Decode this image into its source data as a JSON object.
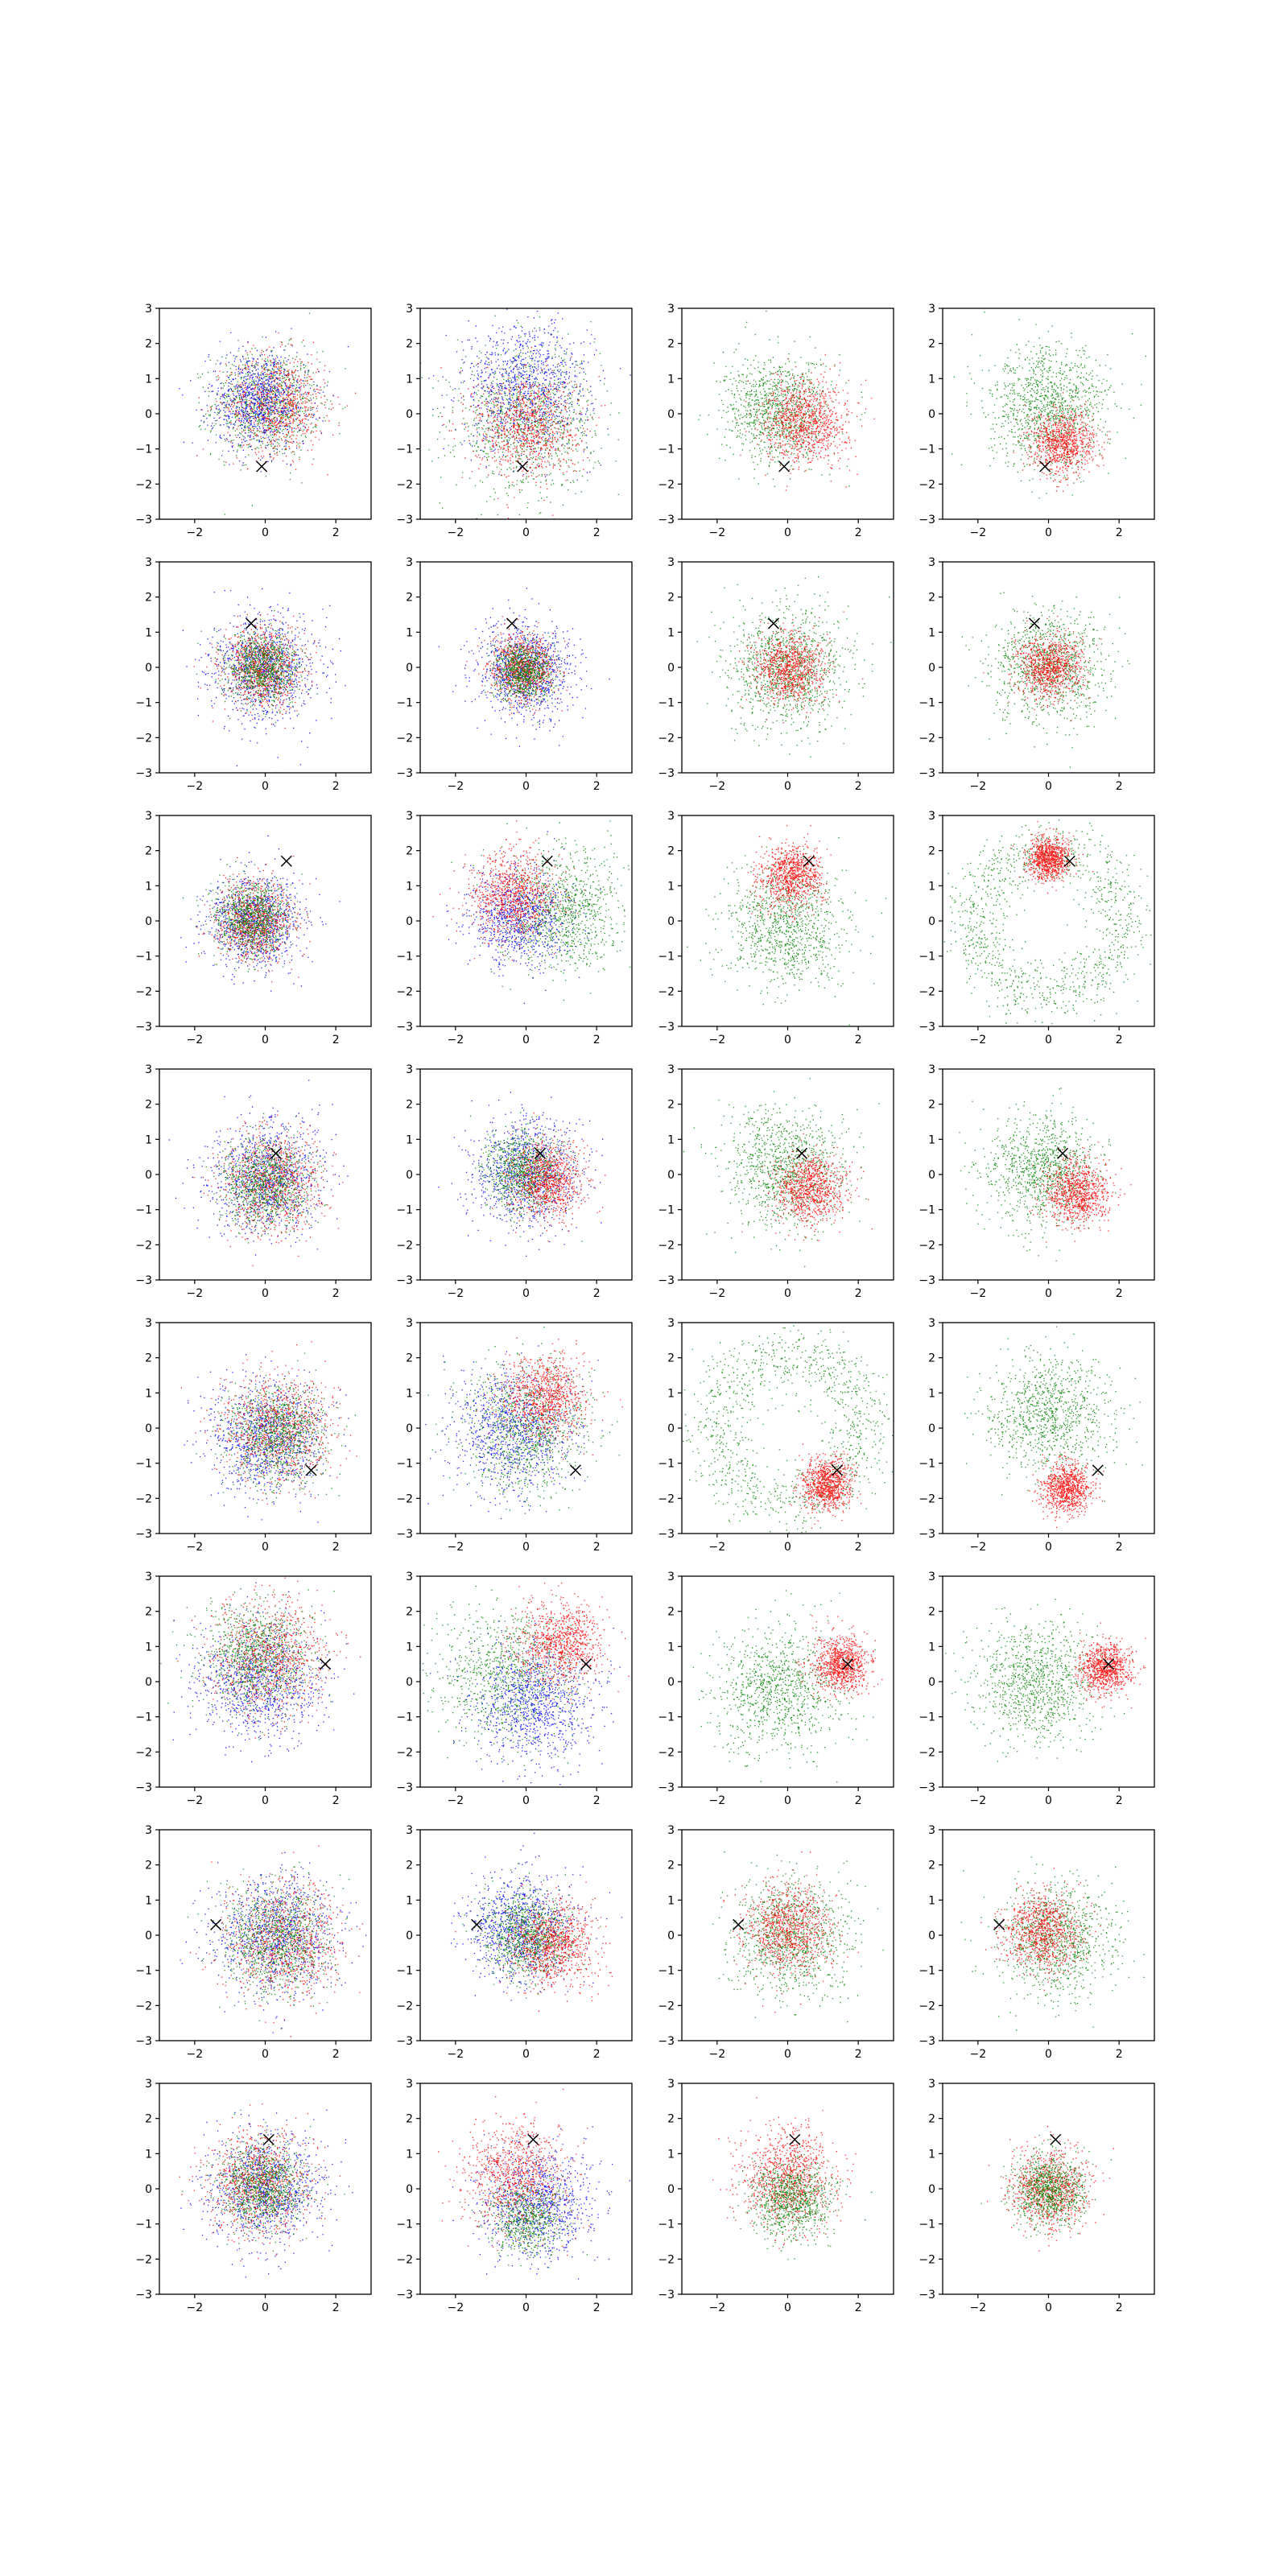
{
  "figure": {
    "rows": 8,
    "cols": 4
  },
  "axes": {
    "xlim": [
      -3,
      3
    ],
    "ylim": [
      -3,
      3
    ],
    "xticks": [
      -2,
      0,
      2
    ],
    "yticks": [
      -3,
      -2,
      -1,
      0,
      1,
      2,
      3
    ],
    "xtick_labels": [
      "−2",
      "0",
      "2"
    ],
    "ytick_labels": [
      "−3",
      "−2",
      "−1",
      "0",
      "1",
      "2",
      "3"
    ],
    "grid": false,
    "legend": "none"
  },
  "colors": {
    "red": "#ff0000",
    "green": "#008000",
    "blue": "#0000ff",
    "marker": "#000000"
  },
  "chart_data": {
    "type": "scatter",
    "description_units": "each panel: gaussian-like point clouds (center x, y, spread sigma, point count) in data units; 'ring' clouds have radius r and width w; marker is the black x position",
    "panels": [
      {
        "row": 0,
        "col": 0,
        "marker": [
          -0.1,
          -1.5
        ],
        "clouds": [
          {
            "color": "green",
            "kind": "blob",
            "cx": 0.0,
            "cy": 0.3,
            "sigma": 0.75,
            "n": 900
          },
          {
            "color": "red",
            "kind": "blob",
            "cx": 0.3,
            "cy": 0.3,
            "sigma": 0.7,
            "n": 900
          },
          {
            "color": "blue",
            "kind": "blob",
            "cx": -0.2,
            "cy": 0.4,
            "sigma": 0.7,
            "n": 900
          }
        ]
      },
      {
        "row": 0,
        "col": 1,
        "marker": [
          -0.1,
          -1.5
        ],
        "clouds": [
          {
            "color": "green",
            "kind": "blob",
            "cx": 0.0,
            "cy": -0.2,
            "sigma": 1.0,
            "n": 1000
          },
          {
            "color": "blue",
            "kind": "blob",
            "cx": 0.0,
            "cy": 0.8,
            "sigma": 0.9,
            "n": 1000
          },
          {
            "color": "red",
            "kind": "blob",
            "cx": 0.0,
            "cy": -0.3,
            "sigma": 0.75,
            "n": 900
          }
        ]
      },
      {
        "row": 0,
        "col": 2,
        "marker": [
          -0.1,
          -1.5
        ],
        "clouds": [
          {
            "color": "green",
            "kind": "blob",
            "cx": -0.3,
            "cy": 0.1,
            "sigma": 0.75,
            "n": 1000
          },
          {
            "color": "red",
            "kind": "blob",
            "cx": 0.5,
            "cy": -0.2,
            "sigma": 0.6,
            "n": 1000
          }
        ]
      },
      {
        "row": 0,
        "col": 3,
        "marker": [
          -0.1,
          -1.5
        ],
        "clouds": [
          {
            "color": "green",
            "kind": "blob",
            "cx": 0.0,
            "cy": 0.2,
            "sigma": 0.85,
            "n": 1100
          },
          {
            "color": "red",
            "kind": "blob",
            "cx": 0.4,
            "cy": -0.8,
            "sigma": 0.45,
            "n": 900
          }
        ]
      },
      {
        "row": 1,
        "col": 0,
        "marker": [
          -0.4,
          1.25
        ],
        "clouds": [
          {
            "color": "blue",
            "kind": "blob",
            "cx": 0.0,
            "cy": 0.0,
            "sigma": 0.75,
            "n": 1000
          },
          {
            "color": "red",
            "kind": "blob",
            "cx": -0.1,
            "cy": 0.0,
            "sigma": 0.55,
            "n": 900
          },
          {
            "color": "green",
            "kind": "blob",
            "cx": -0.1,
            "cy": 0.0,
            "sigma": 0.5,
            "n": 900
          }
        ]
      },
      {
        "row": 1,
        "col": 1,
        "marker": [
          -0.4,
          1.25
        ],
        "clouds": [
          {
            "color": "blue",
            "kind": "blob",
            "cx": 0.0,
            "cy": -0.1,
            "sigma": 0.7,
            "n": 1000
          },
          {
            "color": "red",
            "kind": "blob",
            "cx": -0.1,
            "cy": 0.0,
            "sigma": 0.45,
            "n": 900
          },
          {
            "color": "green",
            "kind": "blob",
            "cx": -0.1,
            "cy": -0.1,
            "sigma": 0.4,
            "n": 800
          }
        ]
      },
      {
        "row": 1,
        "col": 2,
        "marker": [
          -0.4,
          1.25
        ],
        "clouds": [
          {
            "color": "green",
            "kind": "blob",
            "cx": 0.0,
            "cy": 0.0,
            "sigma": 0.85,
            "n": 1100
          },
          {
            "color": "red",
            "kind": "blob",
            "cx": 0.0,
            "cy": 0.0,
            "sigma": 0.5,
            "n": 900
          }
        ]
      },
      {
        "row": 1,
        "col": 3,
        "marker": [
          -0.4,
          1.25
        ],
        "clouds": [
          {
            "color": "green",
            "kind": "blob",
            "cx": 0.0,
            "cy": 0.0,
            "sigma": 0.8,
            "n": 1000
          },
          {
            "color": "red",
            "kind": "blob",
            "cx": 0.0,
            "cy": 0.0,
            "sigma": 0.45,
            "n": 900
          }
        ]
      },
      {
        "row": 2,
        "col": 0,
        "marker": [
          0.6,
          1.7
        ],
        "clouds": [
          {
            "color": "blue",
            "kind": "blob",
            "cx": -0.3,
            "cy": 0.0,
            "sigma": 0.65,
            "n": 1000
          },
          {
            "color": "red",
            "kind": "blob",
            "cx": -0.3,
            "cy": 0.0,
            "sigma": 0.55,
            "n": 900
          },
          {
            "color": "green",
            "kind": "blob",
            "cx": -0.4,
            "cy": 0.1,
            "sigma": 0.5,
            "n": 900
          }
        ]
      },
      {
        "row": 2,
        "col": 1,
        "marker": [
          0.6,
          1.7
        ],
        "clouds": [
          {
            "color": "green",
            "kind": "blob",
            "cx": 1.0,
            "cy": 0.3,
            "sigma": 0.85,
            "n": 1000
          },
          {
            "color": "blue",
            "kind": "blob",
            "cx": -0.2,
            "cy": 0.1,
            "sigma": 0.7,
            "n": 900
          },
          {
            "color": "red",
            "kind": "blob",
            "cx": -0.4,
            "cy": 0.7,
            "sigma": 0.6,
            "n": 900
          }
        ]
      },
      {
        "row": 2,
        "col": 2,
        "marker": [
          0.6,
          1.7
        ],
        "clouds": [
          {
            "color": "green",
            "kind": "blob",
            "cx": 0.0,
            "cy": -0.2,
            "sigma": 0.85,
            "n": 1000
          },
          {
            "color": "red",
            "kind": "blob",
            "cx": 0.1,
            "cy": 1.3,
            "sigma": 0.45,
            "n": 900
          }
        ]
      },
      {
        "row": 2,
        "col": 3,
        "marker": [
          0.6,
          1.7
        ],
        "clouds": [
          {
            "color": "green",
            "kind": "ring",
            "cx": 0.0,
            "cy": 0.0,
            "r": 2.1,
            "w": 0.45,
            "n": 1100
          },
          {
            "color": "red",
            "kind": "blob",
            "cx": 0.0,
            "cy": 1.8,
            "sigma": 0.3,
            "n": 900
          }
        ]
      },
      {
        "row": 3,
        "col": 0,
        "marker": [
          0.3,
          0.6
        ],
        "clouds": [
          {
            "color": "blue",
            "kind": "blob",
            "cx": 0.0,
            "cy": -0.1,
            "sigma": 0.8,
            "n": 1000
          },
          {
            "color": "red",
            "kind": "blob",
            "cx": 0.2,
            "cy": -0.2,
            "sigma": 0.7,
            "n": 900
          },
          {
            "color": "green",
            "kind": "blob",
            "cx": 0.0,
            "cy": -0.2,
            "sigma": 0.6,
            "n": 900
          }
        ]
      },
      {
        "row": 3,
        "col": 1,
        "marker": [
          0.4,
          0.6
        ],
        "clouds": [
          {
            "color": "blue",
            "kind": "blob",
            "cx": 0.0,
            "cy": 0.1,
            "sigma": 0.75,
            "n": 1000
          },
          {
            "color": "green",
            "kind": "blob",
            "cx": -0.1,
            "cy": 0.1,
            "sigma": 0.55,
            "n": 900
          },
          {
            "color": "red",
            "kind": "blob",
            "cx": 0.6,
            "cy": -0.2,
            "sigma": 0.5,
            "n": 900
          }
        ]
      },
      {
        "row": 3,
        "col": 2,
        "marker": [
          0.4,
          0.6
        ],
        "clouds": [
          {
            "color": "green",
            "kind": "blob",
            "cx": -0.1,
            "cy": 0.2,
            "sigma": 0.85,
            "n": 1000
          },
          {
            "color": "red",
            "kind": "blob",
            "cx": 0.6,
            "cy": -0.4,
            "sigma": 0.5,
            "n": 900
          }
        ]
      },
      {
        "row": 3,
        "col": 3,
        "marker": [
          0.4,
          0.6
        ],
        "clouds": [
          {
            "color": "green",
            "kind": "blob",
            "cx": -0.2,
            "cy": 0.1,
            "sigma": 0.8,
            "n": 1000
          },
          {
            "color": "red",
            "kind": "blob",
            "cx": 0.8,
            "cy": -0.5,
            "sigma": 0.45,
            "n": 900
          }
        ]
      },
      {
        "row": 4,
        "col": 0,
        "marker": [
          1.3,
          -1.2
        ],
        "clouds": [
          {
            "color": "blue",
            "kind": "blob",
            "cx": 0.0,
            "cy": -0.3,
            "sigma": 0.8,
            "n": 1000
          },
          {
            "color": "red",
            "kind": "blob",
            "cx": 0.4,
            "cy": 0.0,
            "sigma": 0.75,
            "n": 900
          },
          {
            "color": "green",
            "kind": "blob",
            "cx": 0.3,
            "cy": -0.2,
            "sigma": 0.7,
            "n": 900
          }
        ]
      },
      {
        "row": 4,
        "col": 1,
        "marker": [
          1.4,
          -1.2
        ],
        "clouds": [
          {
            "color": "blue",
            "kind": "blob",
            "cx": -0.4,
            "cy": -0.1,
            "sigma": 0.85,
            "n": 1000
          },
          {
            "color": "green",
            "kind": "blob",
            "cx": 0.0,
            "cy": 0.0,
            "sigma": 0.9,
            "n": 900
          },
          {
            "color": "red",
            "kind": "blob",
            "cx": 0.5,
            "cy": 0.9,
            "sigma": 0.6,
            "n": 900
          }
        ]
      },
      {
        "row": 4,
        "col": 2,
        "marker": [
          1.4,
          -1.2
        ],
        "clouds": [
          {
            "color": "green",
            "kind": "ring",
            "cx": 0.0,
            "cy": 0.0,
            "r": 2.1,
            "w": 0.5,
            "n": 1100
          },
          {
            "color": "red",
            "kind": "blob",
            "cx": 1.1,
            "cy": -1.6,
            "sigma": 0.35,
            "n": 900
          }
        ]
      },
      {
        "row": 4,
        "col": 3,
        "marker": [
          1.4,
          -1.2
        ],
        "clouds": [
          {
            "color": "green",
            "kind": "blob",
            "cx": 0.0,
            "cy": 0.4,
            "sigma": 0.85,
            "n": 1000
          },
          {
            "color": "red",
            "kind": "blob",
            "cx": 0.5,
            "cy": -1.7,
            "sigma": 0.35,
            "n": 900
          }
        ]
      },
      {
        "row": 5,
        "col": 0,
        "marker": [
          1.7,
          0.5
        ],
        "clouds": [
          {
            "color": "blue",
            "kind": "blob",
            "cx": -0.2,
            "cy": 0.0,
            "sigma": 0.85,
            "n": 1000
          },
          {
            "color": "red",
            "kind": "blob",
            "cx": 0.1,
            "cy": 0.7,
            "sigma": 0.8,
            "n": 900
          },
          {
            "color": "green",
            "kind": "blob",
            "cx": -0.3,
            "cy": 0.8,
            "sigma": 0.75,
            "n": 900
          }
        ]
      },
      {
        "row": 5,
        "col": 1,
        "marker": [
          1.7,
          0.5
        ],
        "clouds": [
          {
            "color": "green",
            "kind": "blob",
            "cx": -0.6,
            "cy": 0.2,
            "sigma": 1.0,
            "n": 900
          },
          {
            "color": "blue",
            "kind": "blob",
            "cx": 0.2,
            "cy": -0.6,
            "sigma": 0.85,
            "n": 1000
          },
          {
            "color": "red",
            "kind": "blob",
            "cx": 1.0,
            "cy": 1.1,
            "sigma": 0.6,
            "n": 900
          }
        ]
      },
      {
        "row": 5,
        "col": 2,
        "marker": [
          1.7,
          0.5
        ],
        "clouds": [
          {
            "color": "green",
            "kind": "blob",
            "cx": -0.3,
            "cy": -0.2,
            "sigma": 0.9,
            "n": 1000
          },
          {
            "color": "red",
            "kind": "blob",
            "cx": 1.5,
            "cy": 0.5,
            "sigma": 0.4,
            "n": 900
          }
        ]
      },
      {
        "row": 5,
        "col": 3,
        "marker": [
          1.7,
          0.5
        ],
        "clouds": [
          {
            "color": "green",
            "kind": "blob",
            "cx": -0.4,
            "cy": 0.0,
            "sigma": 0.85,
            "n": 1000
          },
          {
            "color": "red",
            "kind": "blob",
            "cx": 1.6,
            "cy": 0.4,
            "sigma": 0.35,
            "n": 900
          }
        ]
      },
      {
        "row": 6,
        "col": 0,
        "marker": [
          -1.4,
          0.3
        ],
        "clouds": [
          {
            "color": "blue",
            "kind": "blob",
            "cx": 0.3,
            "cy": 0.1,
            "sigma": 0.85,
            "n": 1000
          },
          {
            "color": "red",
            "kind": "blob",
            "cx": 0.5,
            "cy": -0.2,
            "sigma": 0.8,
            "n": 900
          },
          {
            "color": "green",
            "kind": "blob",
            "cx": 0.3,
            "cy": -0.1,
            "sigma": 0.75,
            "n": 900
          }
        ]
      },
      {
        "row": 6,
        "col": 1,
        "marker": [
          -1.4,
          0.3
        ],
        "clouds": [
          {
            "color": "blue",
            "kind": "blob",
            "cx": -0.2,
            "cy": 0.2,
            "sigma": 0.75,
            "n": 1000
          },
          {
            "color": "green",
            "kind": "blob",
            "cx": 0.0,
            "cy": 0.0,
            "sigma": 0.6,
            "n": 900
          },
          {
            "color": "red",
            "kind": "blob",
            "cx": 0.8,
            "cy": -0.3,
            "sigma": 0.6,
            "n": 900
          }
        ]
      },
      {
        "row": 6,
        "col": 2,
        "marker": [
          -1.4,
          0.3
        ],
        "clouds": [
          {
            "color": "green",
            "kind": "blob",
            "cx": 0.1,
            "cy": 0.0,
            "sigma": 0.85,
            "n": 1000
          },
          {
            "color": "red",
            "kind": "blob",
            "cx": 0.0,
            "cy": 0.2,
            "sigma": 0.6,
            "n": 900
          }
        ]
      },
      {
        "row": 6,
        "col": 3,
        "marker": [
          -1.4,
          0.3
        ],
        "clouds": [
          {
            "color": "green",
            "kind": "blob",
            "cx": 0.2,
            "cy": -0.1,
            "sigma": 0.8,
            "n": 1000
          },
          {
            "color": "red",
            "kind": "blob",
            "cx": -0.2,
            "cy": 0.1,
            "sigma": 0.55,
            "n": 900
          }
        ]
      },
      {
        "row": 7,
        "col": 0,
        "marker": [
          0.1,
          1.4
        ],
        "clouds": [
          {
            "color": "blue",
            "kind": "blob",
            "cx": 0.0,
            "cy": 0.0,
            "sigma": 0.8,
            "n": 1000
          },
          {
            "color": "red",
            "kind": "blob",
            "cx": -0.2,
            "cy": 0.2,
            "sigma": 0.7,
            "n": 900
          },
          {
            "color": "green",
            "kind": "blob",
            "cx": -0.1,
            "cy": 0.1,
            "sigma": 0.6,
            "n": 900
          }
        ]
      },
      {
        "row": 7,
        "col": 1,
        "marker": [
          0.2,
          1.4
        ],
        "clouds": [
          {
            "color": "blue",
            "kind": "blob",
            "cx": 0.3,
            "cy": -0.4,
            "sigma": 0.8,
            "n": 1000
          },
          {
            "color": "red",
            "kind": "blob",
            "cx": -0.3,
            "cy": 0.4,
            "sigma": 0.75,
            "n": 900
          },
          {
            "color": "green",
            "kind": "blob",
            "cx": 0.0,
            "cy": -0.8,
            "sigma": 0.5,
            "n": 600
          }
        ]
      },
      {
        "row": 7,
        "col": 2,
        "marker": [
          0.2,
          1.4
        ],
        "clouds": [
          {
            "color": "red",
            "kind": "blob",
            "cx": 0.0,
            "cy": 0.3,
            "sigma": 0.7,
            "n": 1000
          },
          {
            "color": "green",
            "kind": "blob",
            "cx": 0.1,
            "cy": -0.3,
            "sigma": 0.55,
            "n": 900
          }
        ]
      },
      {
        "row": 7,
        "col": 3,
        "marker": [
          0.2,
          1.4
        ],
        "clouds": [
          {
            "color": "red",
            "kind": "blob",
            "cx": 0.0,
            "cy": 0.0,
            "sigma": 0.55,
            "n": 900
          },
          {
            "color": "green",
            "kind": "blob",
            "cx": 0.0,
            "cy": 0.0,
            "sigma": 0.5,
            "n": 900
          }
        ]
      }
    ]
  }
}
